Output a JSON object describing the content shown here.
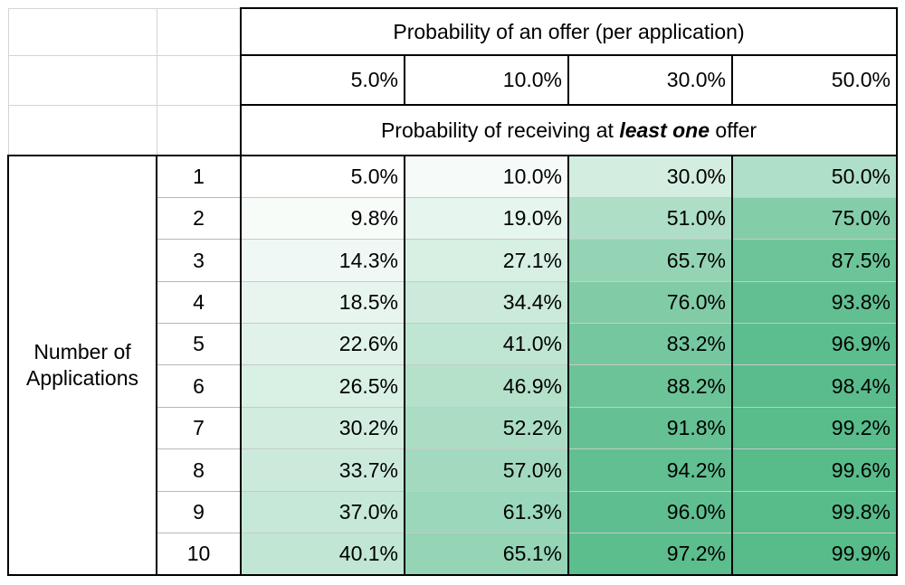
{
  "header": {
    "title": "Probability of an offer (per application)",
    "subtitle_prefix": "Probability of receiving at ",
    "subtitle_emphasis": "least one",
    "subtitle_suffix": " offer"
  },
  "row_label": {
    "line1": "Number of",
    "line2": "Applications"
  },
  "chart_data": {
    "type": "heatmap",
    "title": "Probability of an offer (per application)",
    "subtitle": "Probability of receiving at least one offer",
    "columns_axis_label": "Probability of an offer (per application)",
    "rows_axis_label": "Number of Applications",
    "columns": [
      "5.0%",
      "10.0%",
      "30.0%",
      "50.0%"
    ],
    "row_numbers": [
      1,
      2,
      3,
      4,
      5,
      6,
      7,
      8,
      9,
      10
    ],
    "values": [
      [
        5.0,
        10.0,
        30.0,
        50.0
      ],
      [
        9.8,
        19.0,
        51.0,
        75.0
      ],
      [
        14.3,
        27.1,
        65.7,
        87.5
      ],
      [
        18.5,
        34.4,
        76.0,
        93.8
      ],
      [
        22.6,
        41.0,
        83.2,
        96.9
      ],
      [
        26.5,
        46.9,
        88.2,
        98.4
      ],
      [
        30.2,
        52.2,
        91.8,
        99.2
      ],
      [
        33.7,
        57.0,
        94.2,
        99.6
      ],
      [
        37.0,
        61.3,
        96.0,
        99.8
      ],
      [
        40.1,
        65.1,
        97.2,
        99.9
      ]
    ],
    "value_format": "percent_1dp",
    "color_scale": {
      "min_color": "#ffffff",
      "max_color": "#57bb8a",
      "min_value": 5.0,
      "max_value": 99.9
    }
  }
}
